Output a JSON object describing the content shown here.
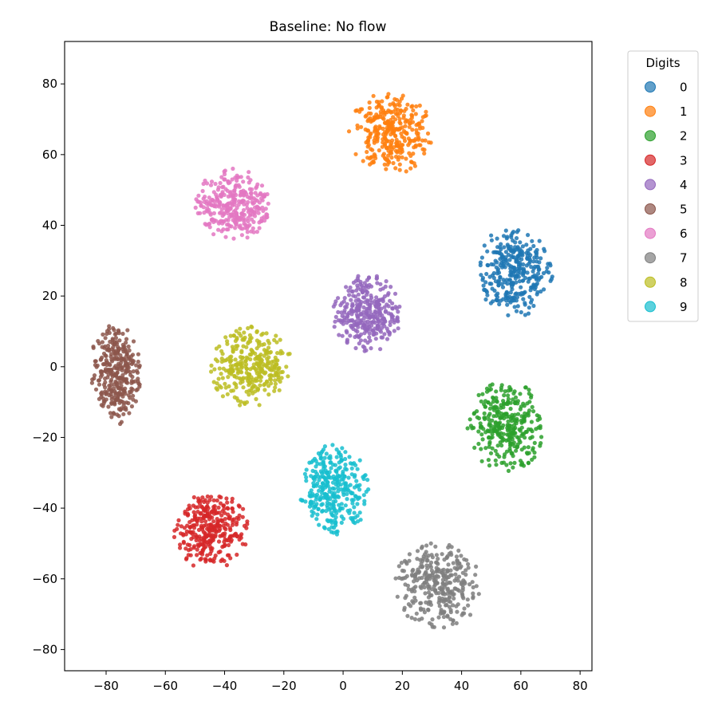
{
  "chart_data": {
    "type": "scatter",
    "title": "Baseline: No flow",
    "xlabel": "",
    "ylabel": "",
    "xlim": [
      -94,
      84
    ],
    "ylim": [
      -86,
      92
    ],
    "xticks": [
      -80,
      -60,
      -40,
      -20,
      0,
      20,
      40,
      60,
      80
    ],
    "yticks": [
      -80,
      -60,
      -40,
      -20,
      0,
      20,
      40,
      60,
      80
    ],
    "xtick_labels": [
      "−80",
      "−60",
      "−40",
      "−20",
      "0",
      "20",
      "40",
      "60",
      "80"
    ],
    "ytick_labels": [
      "−80",
      "−60",
      "−40",
      "−20",
      "0",
      "20",
      "40",
      "60",
      "80"
    ],
    "grid": false,
    "legend": {
      "title": "Digits",
      "placement": "outside upper right"
    },
    "series": [
      {
        "name": "0",
        "color": "#1f77b4",
        "center": [
          58,
          27
        ],
        "spread": [
          9,
          9
        ]
      },
      {
        "name": "1",
        "color": "#ff7f0e",
        "center": [
          16,
          66
        ],
        "spread": [
          10,
          8
        ]
      },
      {
        "name": "2",
        "color": "#2ca02c",
        "center": [
          55,
          -17
        ],
        "spread": [
          9,
          9
        ]
      },
      {
        "name": "3",
        "color": "#d62728",
        "center": [
          -45,
          -46
        ],
        "spread": [
          9,
          8
        ]
      },
      {
        "name": "4",
        "color": "#9467bd",
        "center": [
          8,
          15
        ],
        "spread": [
          8,
          8
        ]
      },
      {
        "name": "5",
        "color": "#8c564b",
        "center": [
          -77,
          -2
        ],
        "spread": [
          6,
          10
        ]
      },
      {
        "name": "6",
        "color": "#e377c2",
        "center": [
          -37,
          46
        ],
        "spread": [
          9,
          7
        ]
      },
      {
        "name": "7",
        "color": "#7f7f7f",
        "center": [
          32,
          -62
        ],
        "spread": [
          10,
          9
        ]
      },
      {
        "name": "8",
        "color": "#bcbd22",
        "center": [
          -31,
          0
        ],
        "spread": [
          10,
          8
        ]
      },
      {
        "name": "9",
        "color": "#17becf",
        "center": [
          -3,
          -35
        ],
        "spread": [
          8,
          9
        ]
      }
    ]
  }
}
